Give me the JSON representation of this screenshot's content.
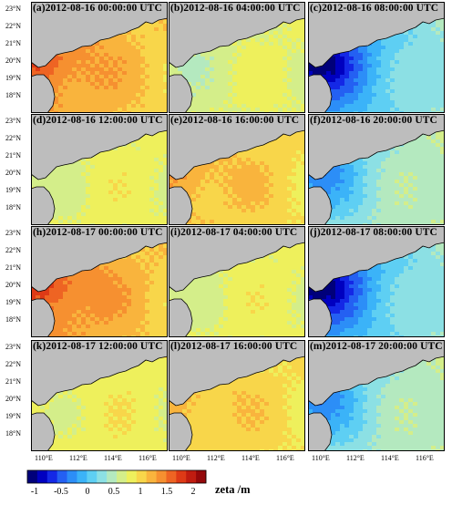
{
  "panels": [
    {
      "label": "(a)2012-08-16 00:00:00 UTC",
      "phase": 1.5
    },
    {
      "label": "(b)2012-08-16 04:00:00 UTC",
      "phase": 0.5
    },
    {
      "label": "(c)2012-08-16 08:00:00 UTC",
      "phase": -1
    },
    {
      "label": "(d)2012-08-16 12:00:00 UTC",
      "phase": 0.6
    },
    {
      "label": "(e)2012-08-16 16:00:00 UTC",
      "phase": 1.2
    },
    {
      "label": "(f)2012-08-16 20:00:00 UTC",
      "phase": -0.3
    },
    {
      "label": "(h)2012-08-17 00:00:00 UTC",
      "phase": 1.6
    },
    {
      "label": "(i)2012-08-17 04:00:00 UTC",
      "phase": 0.6
    },
    {
      "label": "(j)2012-08-17 08:00:00 UTC",
      "phase": -1
    },
    {
      "label": "(k)2012-08-17 12:00:00 UTC",
      "phase": 0.7
    },
    {
      "label": "(l)2012-08-17 16:00:00 UTC",
      "phase": 1.1
    },
    {
      "label": "(m)2012-08-17 20:00:00 UTC",
      "phase": -0.3
    }
  ],
  "lat_labels": [
    "23°N",
    "22°N",
    "21°N",
    "20°N",
    "19°N",
    "18°N"
  ],
  "lon_labels": [
    "110°E",
    "112°E",
    "114°E",
    "116°E"
  ],
  "colorbar": {
    "title": "zeta /m",
    "ticks": [
      "-1",
      "-0.5",
      "0",
      "0.5",
      "1",
      "1.5",
      "2"
    ],
    "range": [
      -1.25,
      2.25
    ],
    "colors": [
      "#00007a",
      "#0000c0",
      "#1428e6",
      "#2460f2",
      "#2c8ef7",
      "#3bb3f8",
      "#5ecff3",
      "#8ce0e4",
      "#b4e9bf",
      "#d4ee8a",
      "#eef05c",
      "#f8d64a",
      "#f9b43d",
      "#f69030",
      "#ee6423",
      "#de3a16",
      "#c01c10",
      "#94080a"
    ]
  },
  "colors": {
    "land": "#bdbdbd",
    "coast": "#000000"
  }
}
